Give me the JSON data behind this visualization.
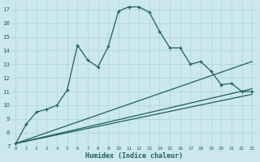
{
  "xlabel": "Humidex (Indice chaleur)",
  "xlim": [
    -0.5,
    23.5
  ],
  "ylim": [
    7,
    17.5
  ],
  "xticks": [
    0,
    1,
    2,
    3,
    4,
    5,
    6,
    7,
    8,
    9,
    10,
    11,
    12,
    13,
    14,
    15,
    16,
    17,
    18,
    19,
    20,
    21,
    22,
    23
  ],
  "yticks": [
    7,
    8,
    9,
    10,
    11,
    12,
    13,
    14,
    15,
    16,
    17
  ],
  "bg_color": "#cce8ec",
  "line_color": "#1a6060",
  "grid_color": "#aad4d8",
  "line1_x": [
    0,
    1,
    2,
    3,
    4,
    5,
    6,
    7,
    8,
    9,
    10,
    11,
    12,
    13,
    14,
    15,
    16,
    17,
    18,
    19,
    20,
    21,
    22,
    23
  ],
  "line1_y": [
    7.2,
    8.6,
    9.5,
    9.7,
    10.0,
    11.1,
    14.4,
    13.3,
    12.8,
    14.3,
    16.9,
    17.2,
    17.2,
    16.8,
    15.4,
    14.2,
    14.2,
    13.0,
    13.2,
    12.5,
    11.5,
    11.6,
    11.0,
    11.0
  ],
  "line2_x": [
    0,
    23
  ],
  "line2_y": [
    7.2,
    13.2
  ],
  "line3_x": [
    0,
    23
  ],
  "line3_y": [
    7.2,
    11.2
  ],
  "line4_x": [
    0,
    23
  ],
  "line4_y": [
    7.2,
    10.8
  ]
}
